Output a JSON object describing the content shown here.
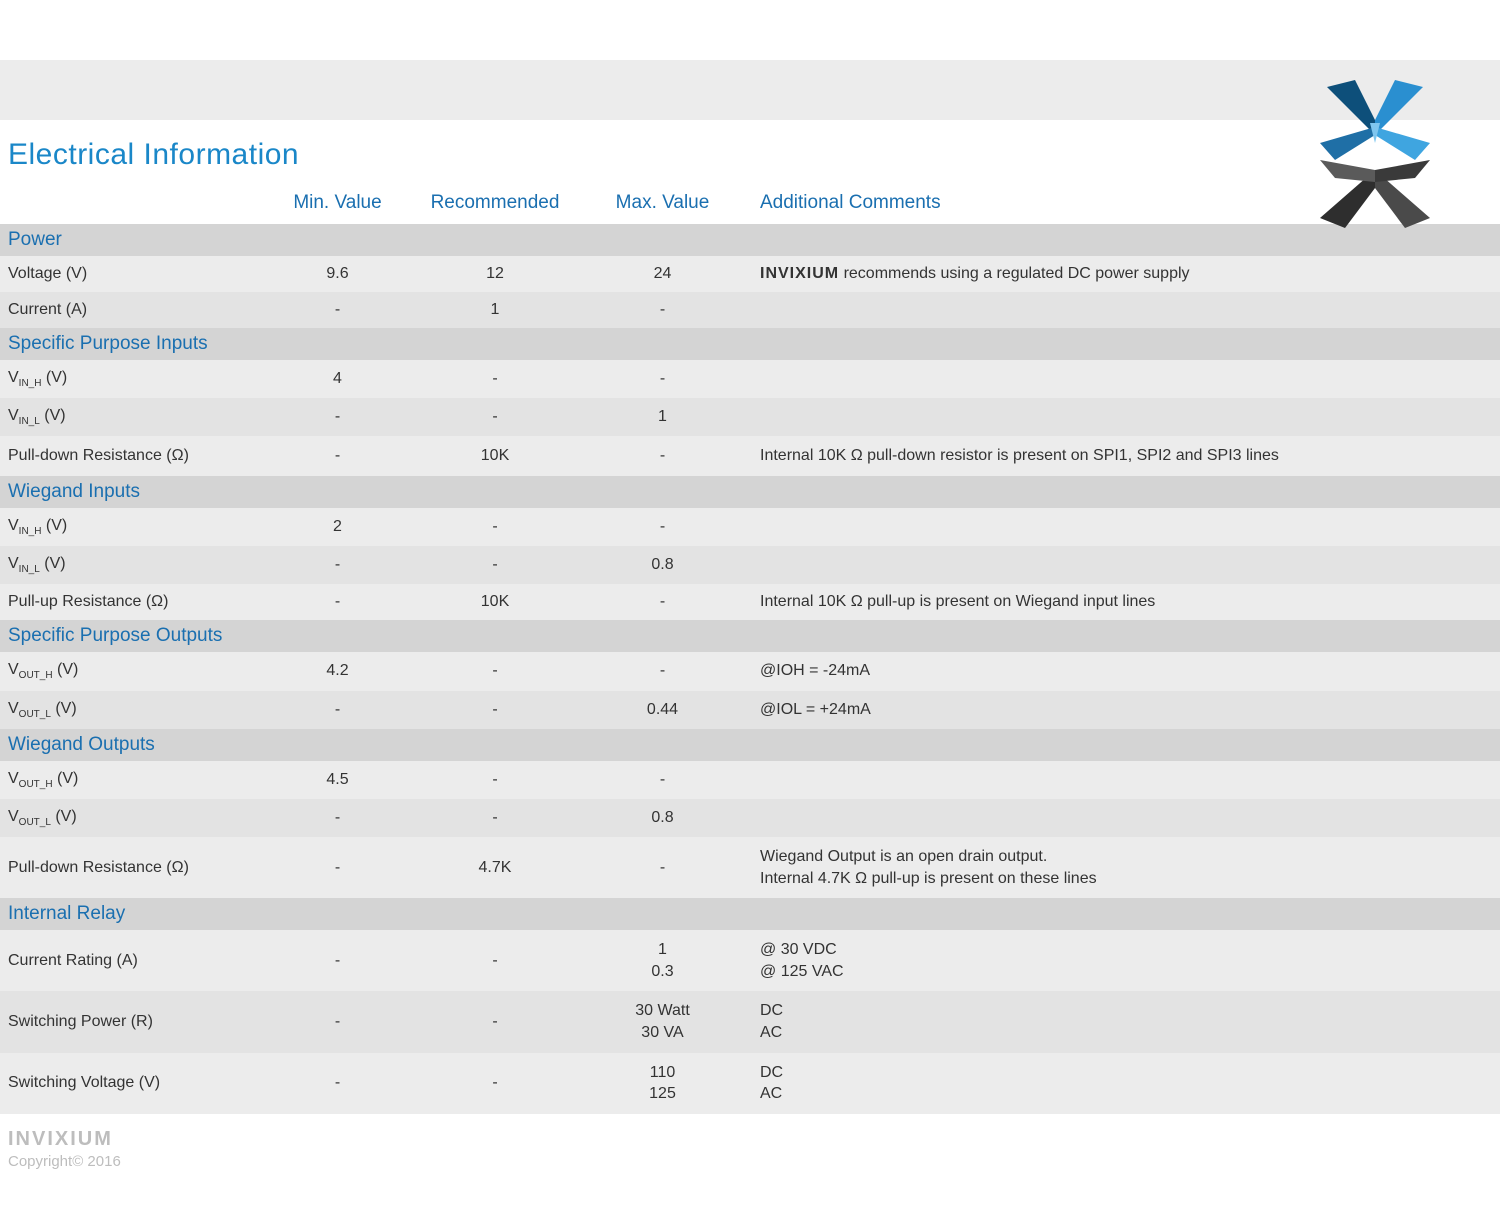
{
  "title": "Electrical Information",
  "columns": {
    "min": "Min. Value",
    "rec": "Recommended",
    "max": "Max. Value",
    "comments": "Additional Comments"
  },
  "footer": {
    "brand": "INVIXIUM",
    "copyright": "Copyright© 2016"
  },
  "brand_inline": "INVIXIUM",
  "sections": {
    "power": {
      "title": "Power",
      "rows": {
        "voltage": {
          "label": "Voltage (V)",
          "min": "9.6",
          "rec": "12",
          "max": "24",
          "comment_suffix": " recommends using a regulated DC power supply"
        },
        "current": {
          "label": "Current (A)",
          "min": "-",
          "rec": "1",
          "max": "-",
          "comment": ""
        }
      }
    },
    "spi": {
      "title": "Specific Purpose Inputs",
      "rows": {
        "vinh": {
          "label_html": "V<sub>IN_H</sub> (V)",
          "min": "4",
          "rec": "-",
          "max": "-",
          "comment": ""
        },
        "vinl": {
          "label_html": "V<sub>IN_L</sub> (V)",
          "min": "-",
          "rec": "-",
          "max": "1",
          "comment": ""
        },
        "pulldown": {
          "label": "Pull-down Resistance (Ω)",
          "min": "-",
          "rec": "10K",
          "max": "-",
          "comment": "Internal 10K Ω pull-down resistor is present on SPI1, SPI2 and SPI3 lines"
        }
      }
    },
    "wiegin": {
      "title": "Wiegand Inputs",
      "rows": {
        "vinh": {
          "label_html": "V<sub>IN_H</sub> (V)",
          "min": "2",
          "rec": "-",
          "max": "-",
          "comment": ""
        },
        "vinl": {
          "label_html": "V<sub>IN_L</sub> (V)",
          "min": "-",
          "rec": "-",
          "max": "0.8",
          "comment": ""
        },
        "pullup": {
          "label": "Pull-up Resistance (Ω)",
          "min": "-",
          "rec": "10K",
          "max": "-",
          "comment": "Internal 10K Ω pull-up is present on Wiegand input lines"
        }
      }
    },
    "spo": {
      "title": "Specific Purpose Outputs",
      "rows": {
        "vouth": {
          "label_html": "V<sub>OUT_H</sub> (V)",
          "min": "4.2",
          "rec": "-",
          "max": "-",
          "comment": "@IOH = -24mA"
        },
        "voutl": {
          "label_html": "V<sub>OUT_L</sub> (V)",
          "min": "-",
          "rec": "-",
          "max": "0.44",
          "comment": "@IOL = +24mA"
        }
      }
    },
    "wiegout": {
      "title": "Wiegand Outputs",
      "rows": {
        "vouth": {
          "label_html": "V<sub>OUT_H</sub> (V)",
          "min": "4.5",
          "rec": "-",
          "max": "-",
          "comment": ""
        },
        "voutl": {
          "label_html": "V<sub>OUT_L</sub> (V)",
          "min": "-",
          "rec": "-",
          "max": "0.8",
          "comment": ""
        },
        "pulldown": {
          "label": "Pull-down Resistance (Ω)",
          "min": "-",
          "rec": "4.7K",
          "max": "-",
          "comment": "Wiegand Output is an open drain output.\nInternal 4.7K Ω pull-up is present on these lines"
        }
      }
    },
    "relay": {
      "title": "Internal Relay",
      "rows": {
        "current": {
          "label": "Current Rating (A)",
          "min": "-",
          "rec": "-",
          "max": "1\n0.3",
          "comment": "@ 30 VDC\n@ 125 VAC"
        },
        "power": {
          "label": "Switching Power (R)",
          "min": "-",
          "rec": "-",
          "max": "30 Watt\n30 VA",
          "comment": "DC\nAC"
        },
        "voltage": {
          "label": "Switching Voltage (V)",
          "min": "-",
          "rec": "-",
          "max": "110\n125",
          "comment": "DC\nAC"
        }
      }
    }
  },
  "style": {
    "accent_color": "#1a87c8",
    "header_text_color": "#1a6fb0",
    "section_bg": "#d4d4d4",
    "row_bg_a": "#ececec",
    "row_bg_b": "#e3e3e3",
    "page_bg": "#ffffff",
    "title_fontsize": 30,
    "header_fontsize": 19,
    "cell_fontsize": 16,
    "footer_color": "#bdbdbd"
  }
}
